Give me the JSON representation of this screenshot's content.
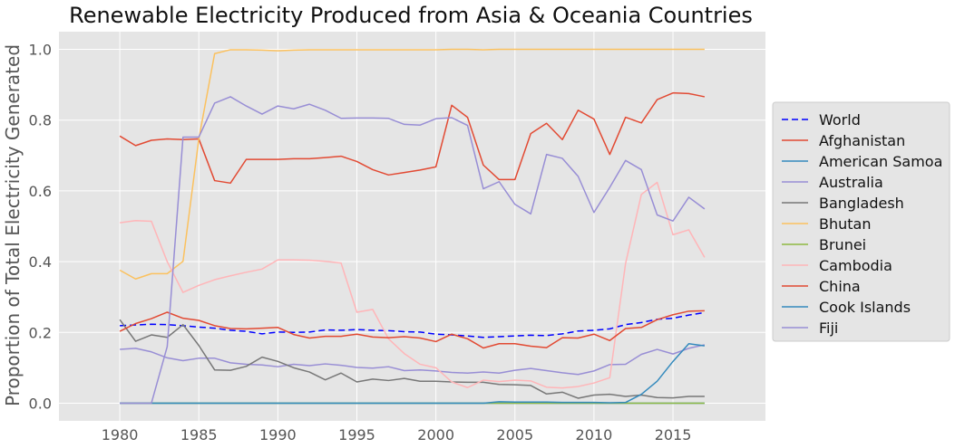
{
  "chart_data": {
    "type": "line",
    "title": "Renewable Electricity Produced from Asia & Oceania Countries",
    "xlabel": "",
    "ylabel": "Proportion of Total Electricity Generated",
    "xlim": [
      1976.15,
      2020.85
    ],
    "ylim": [
      -0.05,
      1.05
    ],
    "x_ticks": [
      1980,
      1985,
      1990,
      1995,
      2000,
      2005,
      2010,
      2015
    ],
    "y_ticks": [
      "0.0",
      "0.2",
      "0.4",
      "0.6",
      "0.8",
      "1.0"
    ],
    "grid": true,
    "legend_placement": "center-right",
    "x": [
      1980,
      1981,
      1982,
      1983,
      1984,
      1985,
      1986,
      1987,
      1988,
      1989,
      1990,
      1991,
      1992,
      1993,
      1994,
      1995,
      1996,
      1997,
      1998,
      1999,
      2000,
      2001,
      2002,
      2003,
      2004,
      2005,
      2006,
      2007,
      2008,
      2009,
      2010,
      2011,
      2012,
      2013,
      2014,
      2015,
      2016,
      2017
    ],
    "series": [
      {
        "name": "World",
        "color": "#0000ff",
        "dashed": true,
        "values": [
          0.219,
          0.221,
          0.223,
          0.222,
          0.219,
          0.215,
          0.212,
          0.206,
          0.203,
          0.196,
          0.201,
          0.2,
          0.201,
          0.207,
          0.206,
          0.208,
          0.206,
          0.205,
          0.202,
          0.201,
          0.195,
          0.193,
          0.19,
          0.186,
          0.188,
          0.19,
          0.192,
          0.191,
          0.196,
          0.204,
          0.206,
          0.21,
          0.222,
          0.228,
          0.237,
          0.24,
          0.249,
          0.256
        ]
      },
      {
        "name": "Afghanistan",
        "color": "#e24a33",
        "dashed": false,
        "values": [
          0.755,
          0.728,
          0.743,
          0.747,
          0.745,
          0.747,
          0.629,
          0.622,
          0.689,
          0.689,
          0.689,
          0.691,
          0.691,
          0.694,
          0.698,
          0.683,
          0.66,
          0.645,
          0.652,
          0.659,
          0.668,
          0.842,
          0.808,
          0.673,
          0.632,
          0.632,
          0.762,
          0.791,
          0.745,
          0.828,
          0.803,
          0.703,
          0.808,
          0.792,
          0.858,
          0.877,
          0.875,
          0.866
        ]
      },
      {
        "name": "American Samoa",
        "color": "#348abd",
        "dashed": false,
        "values": [
          0,
          0,
          0,
          0,
          0,
          0,
          0,
          0,
          0,
          0,
          0,
          0,
          0,
          0,
          0,
          0,
          0,
          0,
          0,
          0,
          0,
          0,
          0,
          0,
          0,
          0,
          0,
          0,
          0,
          0,
          0,
          0,
          0,
          0,
          0,
          0,
          0,
          0
        ]
      },
      {
        "name": "Australia",
        "color": "#988ed5",
        "dashed": false,
        "values": [
          0.152,
          0.155,
          0.145,
          0.128,
          0.12,
          0.127,
          0.127,
          0.114,
          0.11,
          0.108,
          0.103,
          0.11,
          0.106,
          0.111,
          0.107,
          0.101,
          0.099,
          0.103,
          0.092,
          0.094,
          0.091,
          0.087,
          0.085,
          0.088,
          0.085,
          0.093,
          0.098,
          0.092,
          0.086,
          0.081,
          0.091,
          0.109,
          0.11,
          0.138,
          0.152,
          0.139,
          0.155,
          0.165
        ]
      },
      {
        "name": "Bangladesh",
        "color": "#777777",
        "dashed": false,
        "values": [
          0.236,
          0.175,
          0.193,
          0.186,
          0.222,
          0.163,
          0.094,
          0.093,
          0.104,
          0.13,
          0.118,
          0.1,
          0.088,
          0.066,
          0.085,
          0.06,
          0.068,
          0.064,
          0.07,
          0.062,
          0.062,
          0.06,
          0.059,
          0.059,
          0.053,
          0.052,
          0.05,
          0.026,
          0.031,
          0.014,
          0.023,
          0.025,
          0.019,
          0.023,
          0.016,
          0.015,
          0.019,
          0.019
        ]
      },
      {
        "name": "Bhutan",
        "color": "#fbc15e",
        "dashed": false,
        "values": [
          0.376,
          0.351,
          0.366,
          0.366,
          0.401,
          0.747,
          0.988,
          0.999,
          0.999,
          0.998,
          0.996,
          0.998,
          0.999,
          0.999,
          0.999,
          0.999,
          0.999,
          0.999,
          0.999,
          0.999,
          0.999,
          1.0,
          1.0,
          0.999,
          1.0,
          1.0,
          1.0,
          1.0,
          1.0,
          1.0,
          1.0,
          1.0,
          1.0,
          1.0,
          1.0,
          1.0,
          1.0,
          1.0
        ]
      },
      {
        "name": "Brunei",
        "color": "#8eba42",
        "dashed": false,
        "values": [
          0,
          0,
          0,
          0,
          0,
          0,
          0,
          0,
          0,
          0,
          0,
          0,
          0,
          0,
          0,
          0,
          0,
          0,
          0,
          0,
          0,
          0,
          0,
          0,
          0,
          0,
          0,
          0,
          0,
          0,
          0,
          0,
          0,
          0,
          0,
          0,
          0,
          0
        ]
      },
      {
        "name": "Cambodia",
        "color": "#ffb5b8",
        "dashed": false,
        "values": [
          0.51,
          0.516,
          0.514,
          0.4,
          0.313,
          0.333,
          0.349,
          0.36,
          0.37,
          0.379,
          0.405,
          0.405,
          0.404,
          0.401,
          0.396,
          0.257,
          0.265,
          0.182,
          0.14,
          0.11,
          0.1,
          0.06,
          0.044,
          0.065,
          0.061,
          0.065,
          0.063,
          0.045,
          0.043,
          0.047,
          0.057,
          0.072,
          0.395,
          0.59,
          0.624,
          0.476,
          0.49,
          0.412
        ]
      },
      {
        "name": "China",
        "color": "#e24a33",
        "dashed": false,
        "values": [
          0.203,
          0.225,
          0.239,
          0.257,
          0.24,
          0.234,
          0.219,
          0.211,
          0.21,
          0.212,
          0.214,
          0.194,
          0.184,
          0.189,
          0.189,
          0.195,
          0.187,
          0.185,
          0.188,
          0.184,
          0.174,
          0.195,
          0.182,
          0.156,
          0.168,
          0.168,
          0.161,
          0.157,
          0.185,
          0.184,
          0.195,
          0.177,
          0.211,
          0.214,
          0.236,
          0.25,
          0.26,
          0.261
        ]
      },
      {
        "name": "Cook Islands",
        "color": "#348abd",
        "dashed": false,
        "values": [
          0,
          0,
          0,
          0,
          0,
          0,
          0,
          0,
          0,
          0,
          0,
          0,
          0,
          0,
          0,
          0,
          0,
          0,
          0,
          0,
          0,
          0,
          0,
          0,
          0.004,
          0.003,
          0.003,
          0.003,
          0.002,
          0.002,
          0.002,
          0.001,
          0.002,
          0.025,
          0.062,
          0.118,
          0.168,
          0.162
        ]
      },
      {
        "name": "Fiji",
        "color": "#988ed5",
        "dashed": false,
        "values": [
          0,
          0,
          0,
          0.16,
          0.752,
          0.752,
          0.848,
          0.866,
          0.84,
          0.817,
          0.84,
          0.832,
          0.845,
          0.828,
          0.805,
          0.806,
          0.806,
          0.805,
          0.788,
          0.786,
          0.804,
          0.807,
          0.785,
          0.606,
          0.626,
          0.562,
          0.535,
          0.703,
          0.692,
          0.641,
          0.539,
          0.61,
          0.686,
          0.66,
          0.532,
          0.515,
          0.582,
          0.549
        ]
      }
    ]
  }
}
